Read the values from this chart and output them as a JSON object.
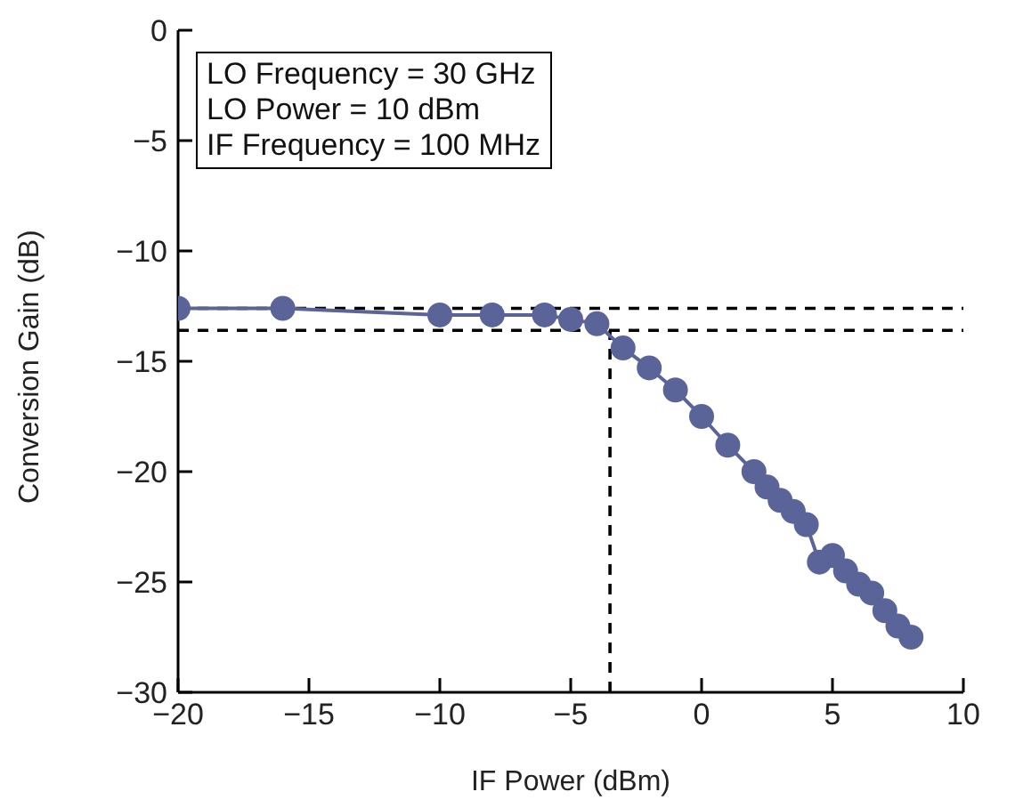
{
  "chart_data": {
    "type": "line",
    "xlabel": "IF Power (dBm)",
    "ylabel": "Conversion Gain (dB)",
    "x": [
      -20,
      -16,
      -10,
      -8,
      -6,
      -5,
      -4,
      -3,
      -2,
      -1,
      0,
      1,
      2,
      2.5,
      3,
      3.5,
      4,
      4.5,
      5,
      5.5,
      6,
      6.5,
      7,
      7.5,
      8
    ],
    "series": [
      {
        "color": "#5a6499",
        "values": [
          -12.6,
          -12.6,
          -12.9,
          -12.9,
          -12.9,
          -13.1,
          -13.3,
          -14.4,
          -15.3,
          -16.3,
          -17.5,
          -18.8,
          -20,
          -20.7,
          -21.3,
          -21.8,
          -22.4,
          -24.1,
          -23.8,
          -24.5,
          -25.1,
          -25.5,
          -26.3,
          -27,
          -27.5
        ]
      }
    ],
    "xlim": [
      -20,
      10
    ],
    "xticks": [
      -20,
      -15,
      -10,
      -5,
      0,
      5,
      10
    ],
    "ylim": [
      -30,
      0
    ],
    "yticks": [
      -30,
      -25,
      -20,
      -15,
      -10,
      -5,
      0
    ],
    "ref_lines": [
      {
        "axis": "y",
        "value": -12.6,
        "color": "#000000",
        "line_style": "dashed"
      },
      {
        "axis": "y",
        "value": -13.6,
        "color": "#000000",
        "line_style": "dashed"
      },
      {
        "axis": "x",
        "value": -3.5,
        "color": "#000000",
        "line_style": "dashed"
      }
    ],
    "annotations": [
      "LO Frequency = 30 GHz",
      "LO Power = 10 dBm",
      "IF Frequency = 100 MHz"
    ],
    "grid": false,
    "legend": false,
    "marker": "circle",
    "line_style": "solid"
  }
}
